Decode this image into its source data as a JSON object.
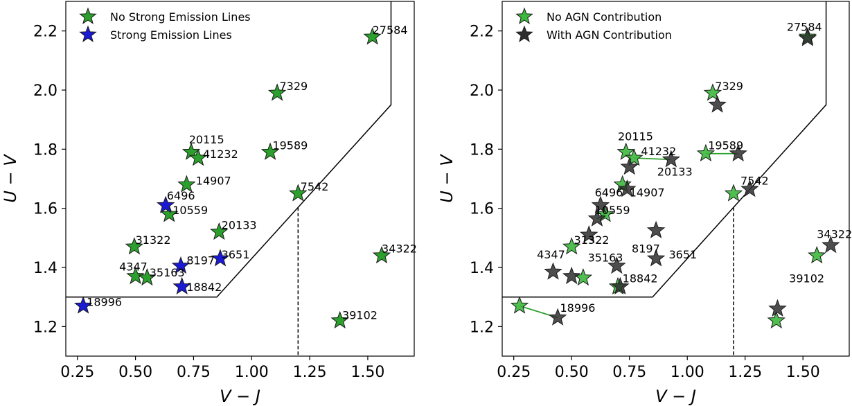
{
  "chart_data": [
    {
      "type": "scatter",
      "xlabel": "V − J",
      "ylabel": "U − V",
      "xlim": [
        0.2,
        1.7
      ],
      "ylim": [
        1.1,
        2.3
      ],
      "xticks": [
        "0.25",
        "0.50",
        "0.75",
        "1.00",
        "1.25",
        "1.50"
      ],
      "yticks": [
        "1.2",
        "1.4",
        "1.6",
        "1.8",
        "2.0",
        "2.2"
      ],
      "legend_position": "top-left",
      "selection_boundary": [
        [
          0.2,
          1.3
        ],
        [
          0.85,
          1.3
        ],
        [
          1.6,
          1.95
        ],
        [
          1.6,
          2.3
        ]
      ],
      "divider_x": 1.2,
      "series": [
        {
          "name": "No Strong Emission Lines",
          "color": "#2ca02c",
          "points": [
            {
              "id": "27584",
              "x": 1.52,
              "y": 2.18
            },
            {
              "id": "7329",
              "x": 1.11,
              "y": 1.99
            },
            {
              "id": "20115",
              "x": 0.74,
              "y": 1.79
            },
            {
              "id": "41232",
              "x": 0.77,
              "y": 1.77
            },
            {
              "id": "19589",
              "x": 1.08,
              "y": 1.79
            },
            {
              "id": "14907",
              "x": 0.72,
              "y": 1.68
            },
            {
              "id": "7542",
              "x": 1.2,
              "y": 1.65
            },
            {
              "id": "10559",
              "x": 0.645,
              "y": 1.58
            },
            {
              "id": "20133",
              "x": 0.86,
              "y": 1.52
            },
            {
              "id": "31322",
              "x": 0.495,
              "y": 1.47
            },
            {
              "id": "34322",
              "x": 1.56,
              "y": 1.44
            },
            {
              "id": "4347",
              "x": 0.5,
              "y": 1.37
            },
            {
              "id": "35163",
              "x": 0.55,
              "y": 1.365
            },
            {
              "id": "39102",
              "x": 1.38,
              "y": 1.22
            }
          ]
        },
        {
          "name": "Strong Emission Lines",
          "color": "#1a1ad6",
          "points": [
            {
              "id": "6496",
              "x": 0.63,
              "y": 1.61
            },
            {
              "id": "8197",
              "x": 0.695,
              "y": 1.405
            },
            {
              "id": "3651",
              "x": 0.865,
              "y": 1.43
            },
            {
              "id": "18842",
              "x": 0.7,
              "y": 1.335
            },
            {
              "id": "18996",
              "x": 0.275,
              "y": 1.27
            }
          ]
        }
      ],
      "labels": [
        {
          "text": "27584",
          "x": 1.52,
          "y": 2.19
        },
        {
          "text": "7329",
          "x": 1.12,
          "y": 2.0
        },
        {
          "text": "20115",
          "x": 0.73,
          "y": 1.82
        },
        {
          "text": "41232",
          "x": 0.79,
          "y": 1.77
        },
        {
          "text": "19589",
          "x": 1.09,
          "y": 1.8
        },
        {
          "text": "14907",
          "x": 0.76,
          "y": 1.68
        },
        {
          "text": "7542",
          "x": 1.21,
          "y": 1.66
        },
        {
          "text": "6496",
          "x": 0.635,
          "y": 1.63
        },
        {
          "text": "10559",
          "x": 0.66,
          "y": 1.58
        },
        {
          "text": "20133",
          "x": 0.87,
          "y": 1.53
        },
        {
          "text": "31322",
          "x": 0.5,
          "y": 1.48
        },
        {
          "text": "34322",
          "x": 1.56,
          "y": 1.45
        },
        {
          "text": "8197",
          "x": 0.72,
          "y": 1.41
        },
        {
          "text": "3651",
          "x": 0.87,
          "y": 1.43
        },
        {
          "text": "4347",
          "x": 0.43,
          "y": 1.39
        },
        {
          "text": "35163",
          "x": 0.56,
          "y": 1.37
        },
        {
          "text": "18842",
          "x": 0.72,
          "y": 1.32
        },
        {
          "text": "18996",
          "x": 0.29,
          "y": 1.27
        },
        {
          "text": "39102",
          "x": 1.39,
          "y": 1.225
        }
      ]
    },
    {
      "type": "scatter",
      "xlabel": "V − J",
      "ylabel": "U − V",
      "xlim": [
        0.2,
        1.7
      ],
      "ylim": [
        1.1,
        2.3
      ],
      "xticks": [
        "0.25",
        "0.50",
        "0.75",
        "1.00",
        "1.25",
        "1.50"
      ],
      "yticks": [
        "1.2",
        "1.4",
        "1.6",
        "1.8",
        "2.0",
        "2.2"
      ],
      "legend_position": "top-left",
      "selection_boundary": [
        [
          0.2,
          1.3
        ],
        [
          0.85,
          1.3
        ],
        [
          1.6,
          1.95
        ],
        [
          1.6,
          2.3
        ]
      ],
      "divider_x": 1.2,
      "series": [
        {
          "name": "No AGN Contribution",
          "color": "#3cb83c",
          "points": [
            {
              "id": "27584",
              "x": 1.52,
              "y": 2.18
            },
            {
              "id": "7329",
              "x": 1.11,
              "y": 1.99
            },
            {
              "id": "20115",
              "x": 0.735,
              "y": 1.79
            },
            {
              "id": "41232",
              "x": 0.77,
              "y": 1.77
            },
            {
              "id": "19589",
              "x": 1.08,
              "y": 1.785
            },
            {
              "id": "14907",
              "x": 0.72,
              "y": 1.68
            },
            {
              "id": "7542",
              "x": 1.2,
              "y": 1.65
            },
            {
              "id": "10559",
              "x": 0.645,
              "y": 1.58
            },
            {
              "id": "31322",
              "x": 0.5,
              "y": 1.47
            },
            {
              "id": "35163",
              "x": 0.55,
              "y": 1.365
            },
            {
              "id": "18842",
              "x": 0.7,
              "y": 1.335
            },
            {
              "id": "34322",
              "x": 1.56,
              "y": 1.44
            },
            {
              "id": "39102",
              "x": 1.385,
              "y": 1.22
            },
            {
              "id": "18996",
              "x": 0.275,
              "y": 1.27
            }
          ]
        },
        {
          "name": "With AGN Contribution",
          "color": "#2e2e2e",
          "points": [
            {
              "id": "27584",
              "x": 1.52,
              "y": 2.175
            },
            {
              "id": "7329",
              "x": 1.13,
              "y": 1.95
            },
            {
              "id": "20133",
              "x": 0.93,
              "y": 1.765
            },
            {
              "id": "19589",
              "x": 1.22,
              "y": 1.785
            },
            {
              "id": "20115",
              "x": 0.75,
              "y": 1.74
            },
            {
              "id": "14907",
              "x": 0.74,
              "y": 1.665
            },
            {
              "id": "7542",
              "x": 1.27,
              "y": 1.665
            },
            {
              "id": "6496",
              "x": 0.625,
              "y": 1.61
            },
            {
              "id": "10559",
              "x": 0.61,
              "y": 1.565
            },
            {
              "id": "8197",
              "x": 0.865,
              "y": 1.525
            },
            {
              "id": "31322",
              "x": 0.575,
              "y": 1.51
            },
            {
              "id": "3651",
              "x": 0.865,
              "y": 1.43
            },
            {
              "id": "4347",
              "x": 0.42,
              "y": 1.385
            },
            {
              "id": "4347b",
              "x": 0.5,
              "y": 1.37
            },
            {
              "id": "35163",
              "x": 0.695,
              "y": 1.405
            },
            {
              "id": "18842",
              "x": 0.71,
              "y": 1.335
            },
            {
              "id": "34322",
              "x": 1.62,
              "y": 1.475
            },
            {
              "id": "39102",
              "x": 1.39,
              "y": 1.26
            },
            {
              "id": "18996",
              "x": 0.44,
              "y": 1.23
            }
          ]
        }
      ],
      "links": [
        {
          "from": [
            0.275,
            1.27
          ],
          "to": [
            0.44,
            1.23
          ]
        },
        {
          "from": [
            1.08,
            1.785
          ],
          "to": [
            1.22,
            1.785
          ]
        },
        {
          "from": [
            0.77,
            1.77
          ],
          "to": [
            0.93,
            1.765
          ]
        },
        {
          "from": [
            0.645,
            1.58
          ],
          "to": [
            0.61,
            1.565
          ]
        }
      ],
      "labels": [
        {
          "text": "27584",
          "x": 1.43,
          "y": 2.2
        },
        {
          "text": "7329",
          "x": 1.12,
          "y": 2.0
        },
        {
          "text": "20115",
          "x": 0.7,
          "y": 1.83
        },
        {
          "text": "41232",
          "x": 0.8,
          "y": 1.78
        },
        {
          "text": "19589",
          "x": 1.09,
          "y": 1.8
        },
        {
          "text": "20133",
          "x": 0.87,
          "y": 1.71
        },
        {
          "text": "14907",
          "x": 0.75,
          "y": 1.64
        },
        {
          "text": "7542",
          "x": 1.23,
          "y": 1.68
        },
        {
          "text": "6496",
          "x": 0.6,
          "y": 1.64
        },
        {
          "text": "10559",
          "x": 0.6,
          "y": 1.58
        },
        {
          "text": "31322",
          "x": 0.51,
          "y": 1.48
        },
        {
          "text": "34322",
          "x": 1.56,
          "y": 1.5
        },
        {
          "text": "8197",
          "x": 0.76,
          "y": 1.45
        },
        {
          "text": "3651",
          "x": 0.92,
          "y": 1.43
        },
        {
          "text": "4347",
          "x": 0.35,
          "y": 1.43
        },
        {
          "text": "35163",
          "x": 0.57,
          "y": 1.42
        },
        {
          "text": "18842",
          "x": 0.72,
          "y": 1.35
        },
        {
          "text": "39102",
          "x": 1.44,
          "y": 1.35
        },
        {
          "text": "18996",
          "x": 0.45,
          "y": 1.25
        }
      ]
    }
  ]
}
